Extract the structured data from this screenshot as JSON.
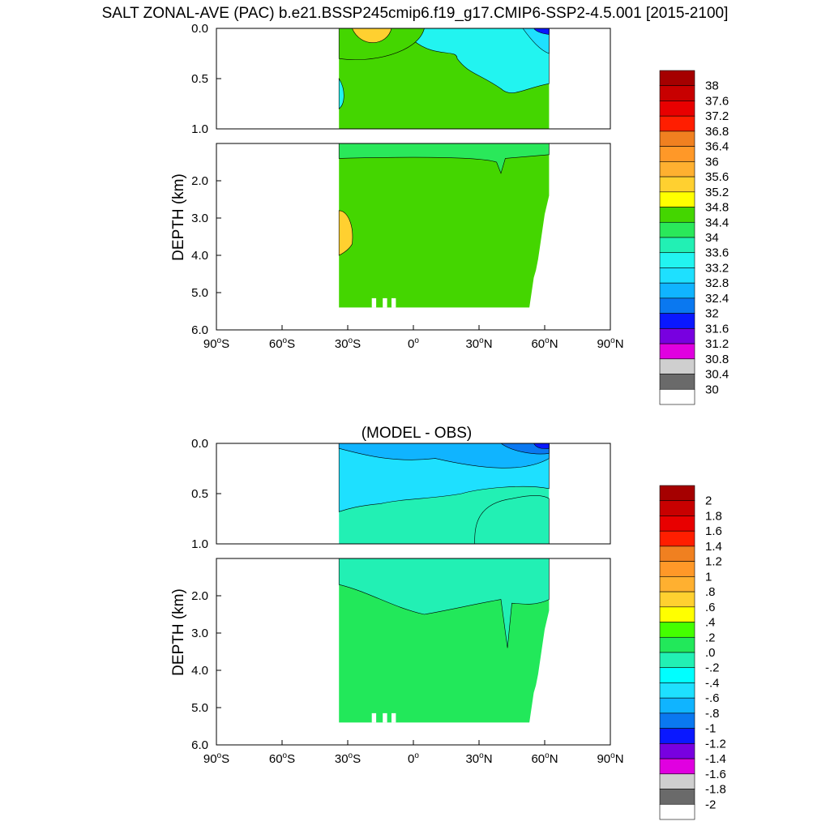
{
  "title": "SALT ZONAL-AVE (PAC) b.e21.BSSP245cmip6.f19_g17.CMIP6-SSP2-4.5.001 [2015-2100]",
  "chart_data": [
    {
      "type": "heatmap",
      "title": "",
      "ylabel": "DEPTH (km)",
      "xlabel": "",
      "x_tick_labels": [
        "90°S",
        "60°S",
        "30°S",
        "0°",
        "30°N",
        "60°N",
        "90°N"
      ],
      "x_ticks": [
        -90,
        -60,
        -30,
        0,
        30,
        60,
        90
      ],
      "upper_y_tick_labels": [
        "0.0",
        "0.5",
        "1.0"
      ],
      "upper_y_ticks": [
        0,
        0.5,
        1.0
      ],
      "lower_y_tick_labels": [
        "2.0",
        "3.0",
        "4.0",
        "5.0",
        "6.0"
      ],
      "lower_y_ticks": [
        2,
        3,
        4,
        5,
        6
      ],
      "xlim": [
        -90,
        90
      ],
      "upper_ylim": [
        0,
        1.0
      ],
      "lower_ylim": [
        1.0,
        6.0
      ],
      "data_lat_range": [
        -34,
        62
      ],
      "colorbar_labels": [
        "38",
        "37.6",
        "37.2",
        "36.8",
        "36.4",
        "36",
        "35.6",
        "35.2",
        "34.8",
        "34.4",
        "34",
        "33.6",
        "33.2",
        "32.8",
        "32.4",
        "32",
        "31.6",
        "31.2",
        "30.8",
        "30.4",
        "30"
      ],
      "colorbar_colors": [
        "#a50000",
        "#c80000",
        "#e80000",
        "#ff1e00",
        "#f08020",
        "#ff9828",
        "#ffb030",
        "#ffd030",
        "#ffff00",
        "#44d600",
        "#2ae85a",
        "#22f0b4",
        "#22f4f0",
        "#1ee0ff",
        "#10b4ff",
        "#0a78f0",
        "#0a18ff",
        "#7800e0",
        "#e000e0",
        "#cfcfcf",
        "#6a6a6a",
        "#ffffff"
      ],
      "background_value": "34.4",
      "features": [
        {
          "label": "34.8",
          "region": "near-surface maximum near 30°S-15°S"
        },
        {
          "label": "34.8",
          "region": "deep maximum near 33°S at 3.2 km"
        },
        {
          "label": "32",
          "region": "surface minimum near 55°N-62°N"
        }
      ]
    },
    {
      "type": "heatmap",
      "title": "(MODEL - OBS)",
      "ylabel": "DEPTH (km)",
      "xlabel": "",
      "x_tick_labels": [
        "90°S",
        "60°S",
        "30°S",
        "0°",
        "30°N",
        "60°N",
        "90°N"
      ],
      "x_ticks": [
        -90,
        -60,
        -30,
        0,
        30,
        60,
        90
      ],
      "upper_y_tick_labels": [
        "0.0",
        "0.5",
        "1.0"
      ],
      "upper_y_ticks": [
        0,
        0.5,
        1.0
      ],
      "lower_y_tick_labels": [
        "2.0",
        "3.0",
        "4.0",
        "5.0",
        "6.0"
      ],
      "lower_y_ticks": [
        2,
        3,
        4,
        5,
        6
      ],
      "xlim": [
        -90,
        90
      ],
      "upper_ylim": [
        0,
        1.0
      ],
      "lower_ylim": [
        1.0,
        6.0
      ],
      "data_lat_range": [
        -34,
        62
      ],
      "colorbar_labels": [
        "2",
        "1.8",
        "1.6",
        "1.4",
        "1.2",
        "1",
        ".8",
        ".6",
        ".4",
        ".2",
        ".0",
        "-.2",
        "-.4",
        "-.6",
        "-.8",
        "-1",
        "-1.2",
        "-1.4",
        "-1.6",
        "-1.8",
        "-2"
      ],
      "colorbar_colors": [
        "#a50000",
        "#c80000",
        "#e80000",
        "#ff1e00",
        "#f08020",
        "#ff9828",
        "#ffb030",
        "#ffd030",
        "#ffff00",
        "#44ff00",
        "#22e85a",
        "#22f0b4",
        "#00ffff",
        "#1ee0ff",
        "#10b4ff",
        "#0a78f0",
        "#0a18ff",
        "#7800e0",
        "#e000e0",
        "#cfcfcf",
        "#6a6a6a",
        "#ffffff"
      ],
      "background_value": ".0",
      "features": [
        {
          "label": "-.4",
          "region": "upper ocean 0-0.6 km, south of 60°N"
        },
        {
          "label": "-.2",
          "region": "0.6-2.3 km"
        },
        {
          "label": "-1",
          "region": "surface near 55°N-62°N"
        }
      ]
    }
  ]
}
